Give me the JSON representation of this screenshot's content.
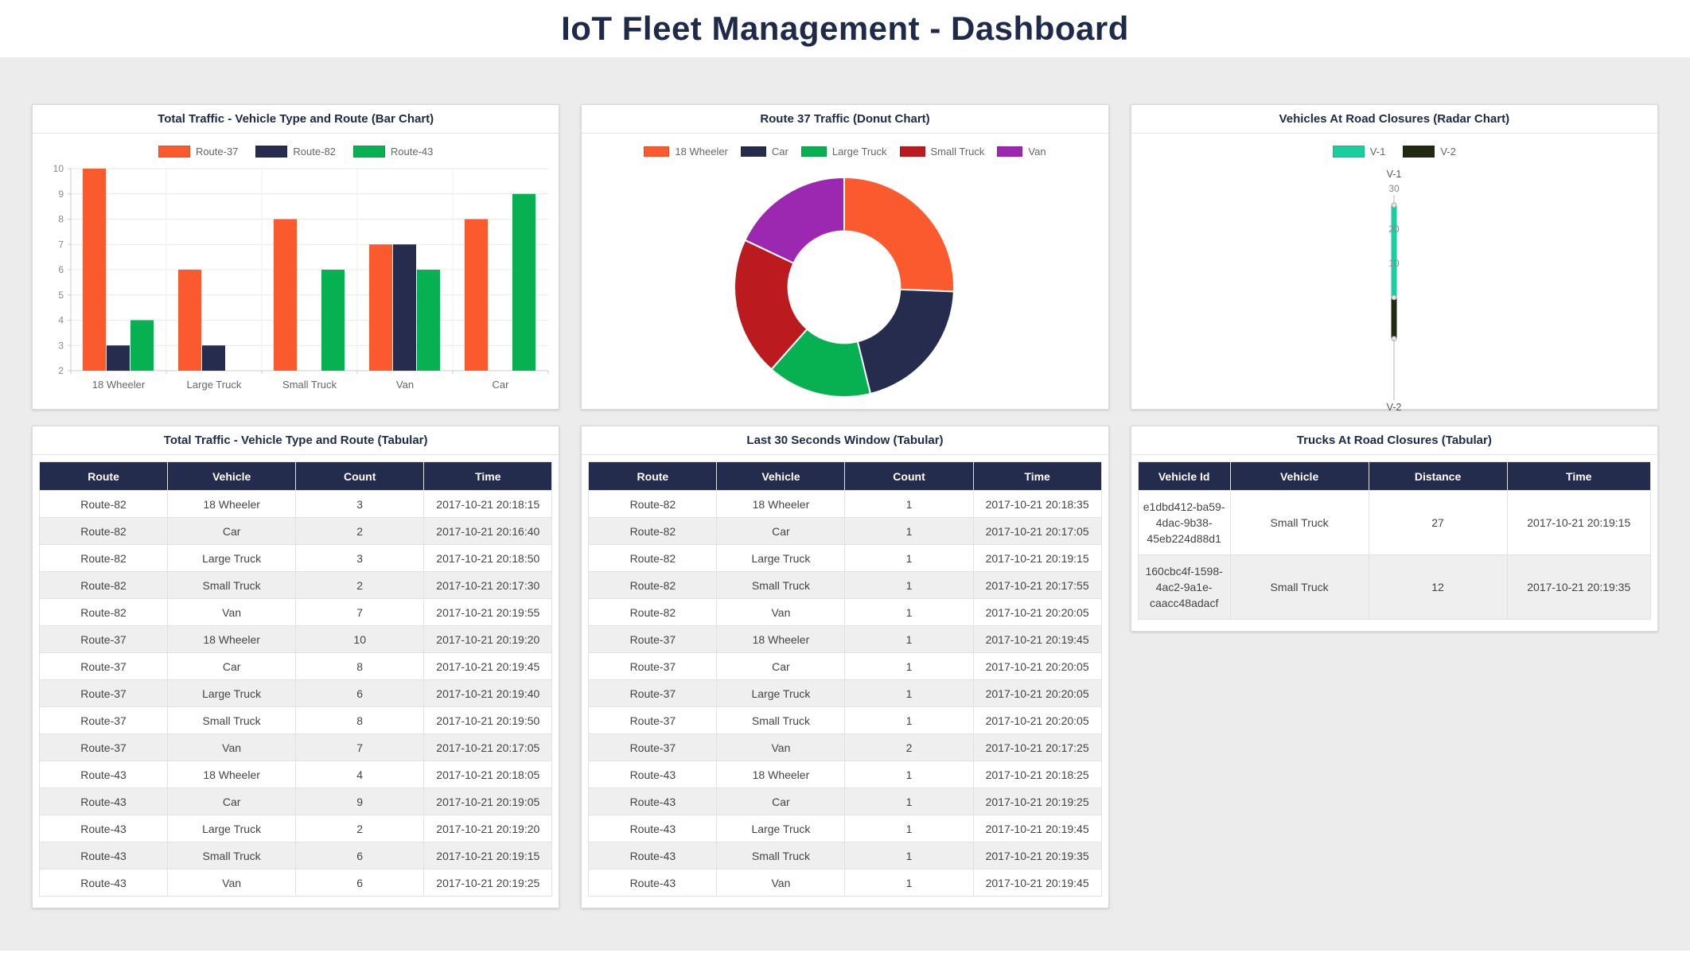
{
  "header": {
    "title": "IoT Fleet Management - Dashboard"
  },
  "theme": {
    "accent_navy": "#242c4e",
    "title_color": "#1e2a4a",
    "page_bg": "#ececec",
    "row_alt": "#efefef",
    "axis_text": "#666666"
  },
  "chart_data": [
    {
      "id": "bar_total_traffic",
      "type": "bar",
      "title": "Total Traffic - Vehicle Type and Route (Bar Chart)",
      "categories": [
        "18 Wheeler",
        "Large Truck",
        "Small Truck",
        "Van",
        "Car"
      ],
      "series": [
        {
          "name": "Route-37",
          "color": "#fb5a2e",
          "values": [
            10,
            6,
            8,
            7,
            8
          ]
        },
        {
          "name": "Route-82",
          "color": "#252c4e",
          "values": [
            3,
            3,
            2,
            7,
            2
          ]
        },
        {
          "name": "Route-43",
          "color": "#07b152",
          "values": [
            4,
            2,
            6,
            6,
            9
          ]
        }
      ],
      "ylim": [
        2,
        10
      ],
      "ytick_step": 1,
      "grid": true,
      "legend_position": "top",
      "note": "bars equal to the axis minimum (2) render with zero height"
    },
    {
      "id": "donut_route37_traffic",
      "type": "pie",
      "title": "Route 37 Traffic (Donut Chart)",
      "labels": [
        "18 Wheeler",
        "Car",
        "Large Truck",
        "Small Truck",
        "Van"
      ],
      "values": [
        10,
        8,
        6,
        8,
        7
      ],
      "colors": [
        "#fb5a2e",
        "#252c4e",
        "#07b152",
        "#bb1a1e",
        "#9c27b0"
      ],
      "donut_hole_ratio": 0.51,
      "start_angle_deg": 0,
      "direction": "clockwise",
      "legend_position": "top"
    },
    {
      "id": "radar_road_closures",
      "type": "radar",
      "title": "Vehicles At Road Closures (Radar Chart)",
      "axes": [
        "V-1",
        "V-2"
      ],
      "series": [
        {
          "name": "V-1",
          "color": "#1bce9d",
          "values": [
            27,
            0
          ]
        },
        {
          "name": "V-2",
          "color": "#212a10",
          "values": [
            0,
            12
          ]
        }
      ],
      "rmax": 30,
      "rticks": [
        10,
        20,
        30
      ],
      "legend_position": "top"
    }
  ],
  "tables": {
    "total": {
      "title": "Total Traffic - Vehicle Type and Route (Tabular)",
      "headers": [
        "Route",
        "Vehicle",
        "Count",
        "Time"
      ],
      "rows": [
        [
          "Route-82",
          "18 Wheeler",
          "3",
          "2017-10-21 20:18:15"
        ],
        [
          "Route-82",
          "Car",
          "2",
          "2017-10-21 20:16:40"
        ],
        [
          "Route-82",
          "Large Truck",
          "3",
          "2017-10-21 20:18:50"
        ],
        [
          "Route-82",
          "Small Truck",
          "2",
          "2017-10-21 20:17:30"
        ],
        [
          "Route-82",
          "Van",
          "7",
          "2017-10-21 20:19:55"
        ],
        [
          "Route-37",
          "18 Wheeler",
          "10",
          "2017-10-21 20:19:20"
        ],
        [
          "Route-37",
          "Car",
          "8",
          "2017-10-21 20:19:45"
        ],
        [
          "Route-37",
          "Large Truck",
          "6",
          "2017-10-21 20:19:40"
        ],
        [
          "Route-37",
          "Small Truck",
          "8",
          "2017-10-21 20:19:50"
        ],
        [
          "Route-37",
          "Van",
          "7",
          "2017-10-21 20:17:05"
        ],
        [
          "Route-43",
          "18 Wheeler",
          "4",
          "2017-10-21 20:18:05"
        ],
        [
          "Route-43",
          "Car",
          "9",
          "2017-10-21 20:19:05"
        ],
        [
          "Route-43",
          "Large Truck",
          "2",
          "2017-10-21 20:19:20"
        ],
        [
          "Route-43",
          "Small Truck",
          "6",
          "2017-10-21 20:19:15"
        ],
        [
          "Route-43",
          "Van",
          "6",
          "2017-10-21 20:19:25"
        ]
      ]
    },
    "window": {
      "title": "Last 30 Seconds Window (Tabular)",
      "headers": [
        "Route",
        "Vehicle",
        "Count",
        "Time"
      ],
      "rows": [
        [
          "Route-82",
          "18 Wheeler",
          "1",
          "2017-10-21 20:18:35"
        ],
        [
          "Route-82",
          "Car",
          "1",
          "2017-10-21 20:17:05"
        ],
        [
          "Route-82",
          "Large Truck",
          "1",
          "2017-10-21 20:19:15"
        ],
        [
          "Route-82",
          "Small Truck",
          "1",
          "2017-10-21 20:17:55"
        ],
        [
          "Route-82",
          "Van",
          "1",
          "2017-10-21 20:20:05"
        ],
        [
          "Route-37",
          "18 Wheeler",
          "1",
          "2017-10-21 20:19:45"
        ],
        [
          "Route-37",
          "Car",
          "1",
          "2017-10-21 20:20:05"
        ],
        [
          "Route-37",
          "Large Truck",
          "1",
          "2017-10-21 20:20:05"
        ],
        [
          "Route-37",
          "Small Truck",
          "1",
          "2017-10-21 20:20:05"
        ],
        [
          "Route-37",
          "Van",
          "2",
          "2017-10-21 20:17:25"
        ],
        [
          "Route-43",
          "18 Wheeler",
          "1",
          "2017-10-21 20:18:25"
        ],
        [
          "Route-43",
          "Car",
          "1",
          "2017-10-21 20:19:25"
        ],
        [
          "Route-43",
          "Large Truck",
          "1",
          "2017-10-21 20:19:45"
        ],
        [
          "Route-43",
          "Small Truck",
          "1",
          "2017-10-21 20:19:35"
        ],
        [
          "Route-43",
          "Van",
          "1",
          "2017-10-21 20:19:45"
        ]
      ]
    },
    "trucks": {
      "title": "Trucks At Road Closures (Tabular)",
      "headers": [
        "Vehicle Id",
        "Vehicle",
        "Distance",
        "Time"
      ],
      "rows": [
        [
          "e1dbd412-ba59-4dac-9b38-45eb224d88d1",
          "Small Truck",
          "27",
          "2017-10-21 20:19:15"
        ],
        [
          "160cbc4f-1598-4ac2-9a1e-caacc48adacf",
          "Small Truck",
          "12",
          "2017-10-21 20:19:35"
        ]
      ]
    }
  }
}
